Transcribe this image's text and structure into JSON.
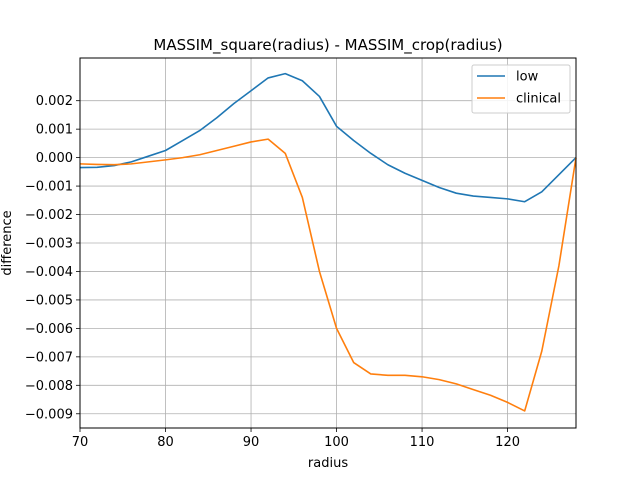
{
  "chart_data": {
    "type": "line",
    "title": "MASSIM_square(radius) - MASSIM_crop(radius)",
    "xlabel": "radius",
    "ylabel": "difference",
    "xlim": [
      70,
      128
    ],
    "ylim": [
      -0.0095,
      0.0035
    ],
    "x_ticks": [
      70,
      80,
      90,
      100,
      110,
      120
    ],
    "y_ticks": [
      0.002,
      0.001,
      0.0,
      -0.001,
      -0.002,
      -0.003,
      -0.004,
      -0.005,
      -0.006,
      -0.007,
      -0.008,
      -0.009
    ],
    "y_tick_labels": [
      "0.002",
      "0.001",
      "0.000",
      "−0.001",
      "−0.002",
      "−0.003",
      "−0.004",
      "−0.005",
      "−0.006",
      "−0.007",
      "−0.008",
      "−0.009"
    ],
    "grid": "vertical",
    "legend_position": "top-right",
    "series": [
      {
        "name": "low",
        "color": "#1f77b4",
        "x": [
          70,
          72,
          74,
          76,
          78,
          80,
          82,
          84,
          86,
          88,
          90,
          92,
          94,
          96,
          98,
          100,
          102,
          104,
          106,
          108,
          110,
          112,
          114,
          116,
          118,
          120,
          122,
          124,
          126,
          128
        ],
        "y": [
          -0.00035,
          -0.00034,
          -0.00028,
          -0.00015,
          5e-05,
          0.00025,
          0.0006,
          0.00095,
          0.0014,
          0.0019,
          0.00235,
          0.0028,
          0.00295,
          0.0027,
          0.00215,
          0.0011,
          0.0006,
          0.00015,
          -0.00025,
          -0.00055,
          -0.0008,
          -0.00105,
          -0.00125,
          -0.00135,
          -0.0014,
          -0.00145,
          -0.00155,
          -0.0012,
          -0.0006,
          0.0
        ]
      },
      {
        "name": "clinical",
        "color": "#ff7f0e",
        "x": [
          70,
          72,
          74,
          76,
          78,
          80,
          82,
          84,
          86,
          88,
          90,
          92,
          94,
          96,
          98,
          100,
          102,
          104,
          106,
          108,
          110,
          112,
          114,
          116,
          118,
          120,
          122,
          124,
          126,
          128
        ],
        "y": [
          -0.00022,
          -0.00024,
          -0.00025,
          -0.00022,
          -0.00015,
          -8e-05,
          0.0,
          0.0001,
          0.00025,
          0.0004,
          0.00055,
          0.00065,
          0.00015,
          -0.0014,
          -0.004,
          -0.006,
          -0.0072,
          -0.0076,
          -0.00765,
          -0.00765,
          -0.0077,
          -0.0078,
          -0.00795,
          -0.00815,
          -0.00835,
          -0.0086,
          -0.0089,
          -0.0068,
          -0.0038,
          0.0
        ]
      }
    ]
  }
}
